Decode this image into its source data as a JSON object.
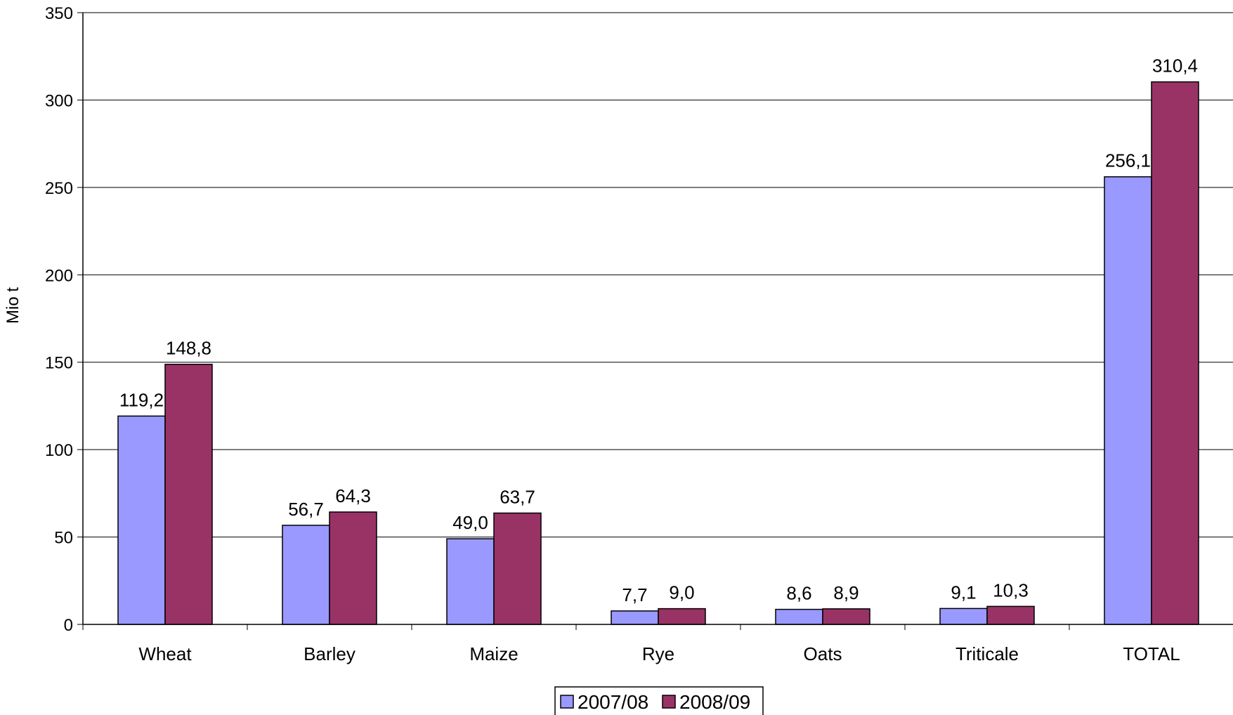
{
  "chart_data": {
    "type": "bar",
    "categories": [
      "Wheat",
      "Barley",
      "Maize",
      "Rye",
      "Oats",
      "Triticale",
      "TOTAL"
    ],
    "series": [
      {
        "name": "2007/08",
        "color": "#9999ff",
        "values": [
          119.2,
          56.7,
          49.0,
          7.7,
          8.6,
          9.1,
          256.1
        ],
        "labels": [
          "119,2",
          "56,7",
          "49,0",
          "7,7",
          "8,6",
          "9,1",
          "256,1"
        ]
      },
      {
        "name": "2008/09",
        "color": "#993366",
        "values": [
          148.8,
          64.3,
          63.7,
          9.0,
          8.9,
          10.3,
          310.4
        ],
        "labels": [
          "148,8",
          "64,3",
          "63,7",
          "9,0",
          "8,9",
          "10,3",
          "310,4"
        ]
      }
    ],
    "ylabel": "Mio t",
    "xlabel": "",
    "ylim": [
      0,
      350
    ],
    "yticks": [
      0,
      50,
      100,
      150,
      200,
      250,
      300,
      350
    ],
    "grid": true,
    "legend": "bottom-center"
  }
}
